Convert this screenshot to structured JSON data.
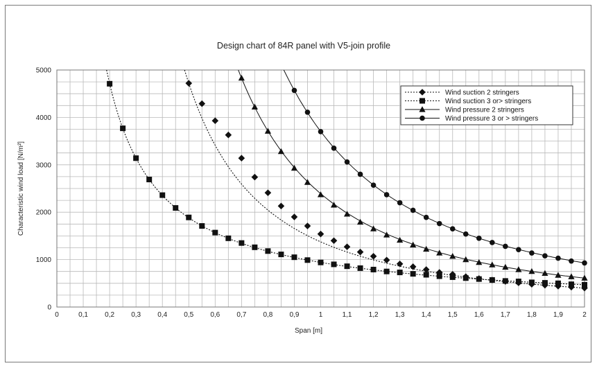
{
  "chart_data": {
    "type": "line",
    "title": "Design chart of 84R panel with V5-join profile",
    "xlabel": "Span [m]",
    "ylabel": "Characteristic wind load  [N/m²]",
    "xlim": [
      0,
      2
    ],
    "ylim": [
      0,
      5000
    ],
    "x_ticks": [
      "0",
      "0,1",
      "0,2",
      "0,3",
      "0,4",
      "0,5",
      "0,6",
      "0,7",
      "0,8",
      "0,9",
      "1",
      "1,1",
      "1,2",
      "1,3",
      "1,4",
      "1,5",
      "1,6",
      "1,7",
      "1,8",
      "1,9",
      "2"
    ],
    "y_ticks": [
      "0",
      "1000",
      "2000",
      "3000",
      "4000",
      "5000"
    ],
    "grid": true,
    "minor_x_step": 0.05,
    "minor_y_step": 250,
    "legend_position": "top-right",
    "series": [
      {
        "name": "Wind suction 2 stringers",
        "marker": "diamond",
        "line": "dotted",
        "x": [
          0.5,
          0.55,
          0.6,
          0.65,
          0.7,
          0.75,
          0.8,
          0.85,
          0.9,
          0.95,
          1.0,
          1.05,
          1.1,
          1.15,
          1.2,
          1.25,
          1.3,
          1.35,
          1.4,
          1.45,
          1.5,
          1.55,
          1.6,
          1.65,
          1.7,
          1.75,
          1.8,
          1.85,
          1.9,
          1.95,
          2.0
        ],
        "y": [
          4720,
          4290,
          3930,
          3630,
          3140,
          2740,
          2410,
          2130,
          1900,
          1710,
          1540,
          1400,
          1270,
          1160,
          1070,
          990,
          910,
          850,
          790,
          730,
          690,
          640,
          600,
          570,
          540,
          510,
          480,
          460,
          440,
          420,
          400
        ]
      },
      {
        "name": "Wind suction 3 or> stringers",
        "marker": "square",
        "line": "dotted",
        "x": [
          0.2,
          0.25,
          0.3,
          0.35,
          0.4,
          0.45,
          0.5,
          0.55,
          0.6,
          0.65,
          0.7,
          0.75,
          0.8,
          0.85,
          0.9,
          0.95,
          1.0,
          1.05,
          1.1,
          1.15,
          1.2,
          1.25,
          1.3,
          1.35,
          1.4,
          1.45,
          1.5,
          1.55,
          1.6,
          1.65,
          1.7,
          1.75,
          1.8,
          1.85,
          1.9,
          1.95,
          2.0
        ],
        "y": [
          4710,
          3770,
          3140,
          2690,
          2360,
          2090,
          1890,
          1710,
          1570,
          1450,
          1350,
          1260,
          1180,
          1110,
          1050,
          990,
          940,
          900,
          860,
          820,
          790,
          750,
          730,
          700,
          680,
          650,
          630,
          610,
          590,
          570,
          550,
          540,
          520,
          510,
          500,
          480,
          470
        ]
      },
      {
        "name": "Wind pressure 2 stringers",
        "marker": "triangle",
        "line": "solid",
        "x": [
          0.7,
          0.75,
          0.8,
          0.85,
          0.9,
          0.95,
          1.0,
          1.05,
          1.1,
          1.15,
          1.2,
          1.25,
          1.3,
          1.35,
          1.4,
          1.45,
          1.5,
          1.55,
          1.6,
          1.65,
          1.7,
          1.75,
          1.8,
          1.85,
          1.9,
          1.95,
          2.0
        ],
        "y": [
          4830,
          4220,
          3710,
          3280,
          2930,
          2630,
          2370,
          2150,
          1960,
          1790,
          1650,
          1520,
          1410,
          1310,
          1220,
          1140,
          1070,
          1000,
          940,
          890,
          840,
          790,
          750,
          710,
          670,
          640,
          610
        ]
      },
      {
        "name": "Wind pressure 3 or > stringers",
        "marker": "circle",
        "line": "solid",
        "x": [
          0.9,
          0.95,
          1.0,
          1.05,
          1.1,
          1.15,
          1.2,
          1.25,
          1.3,
          1.35,
          1.4,
          1.45,
          1.5,
          1.55,
          1.6,
          1.65,
          1.7,
          1.75,
          1.8,
          1.85,
          1.9,
          1.95,
          2.0
        ],
        "y": [
          4570,
          4110,
          3700,
          3350,
          3060,
          2800,
          2570,
          2370,
          2200,
          2040,
          1890,
          1760,
          1650,
          1540,
          1450,
          1360,
          1280,
          1210,
          1140,
          1080,
          1030,
          970,
          930
        ]
      }
    ]
  }
}
